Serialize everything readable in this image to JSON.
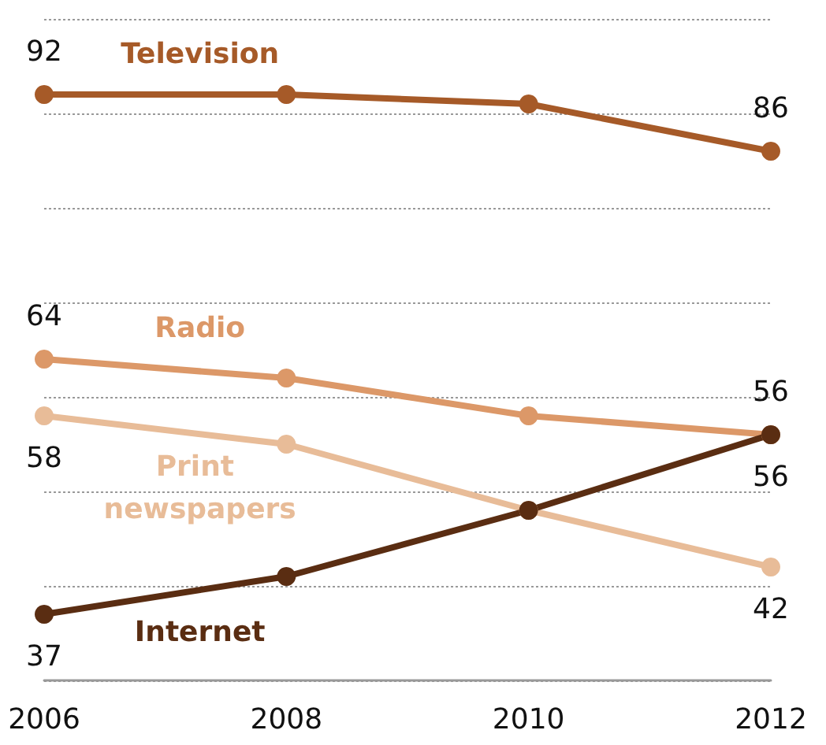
{
  "chart_data": {
    "type": "line",
    "categories": [
      "2006",
      "2008",
      "2010",
      "2012"
    ],
    "series": [
      {
        "name": "Television",
        "color": "#a65a28",
        "values": [
          92,
          92,
          91,
          86
        ],
        "value_labels": [
          "92",
          null,
          null,
          "86"
        ]
      },
      {
        "name": "Radio",
        "color": "#dc9868",
        "values": [
          64,
          62,
          58,
          56
        ],
        "value_labels": [
          "64",
          null,
          null,
          "56"
        ]
      },
      {
        "name": "Print newspapers",
        "color": "#e8bc98",
        "values": [
          58,
          55,
          48,
          42
        ],
        "value_labels": [
          "58",
          null,
          null,
          "42"
        ]
      },
      {
        "name": "Internet",
        "color": "#5a2d12",
        "values": [
          37,
          41,
          48,
          56
        ],
        "value_labels": [
          "37",
          null,
          null,
          "56"
        ]
      }
    ],
    "ylim": [
      30,
      100
    ],
    "yticks": [
      {
        "value": 30,
        "label": null
      },
      {
        "value": 40,
        "label": null
      },
      {
        "value": 50,
        "label": null
      },
      {
        "value": 60,
        "label": null
      },
      {
        "value": 70,
        "label": null
      },
      {
        "value": 80,
        "label": null
      },
      {
        "value": 90,
        "label": null
      },
      {
        "value": 100,
        "label": null
      }
    ],
    "grid": "y",
    "legend": false,
    "tick_labels": "x",
    "marker": "circle"
  }
}
